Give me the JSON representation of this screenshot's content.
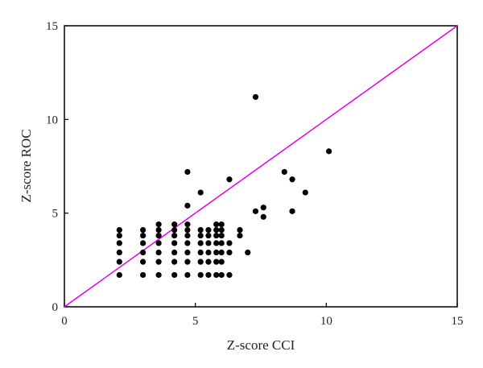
{
  "chart_data": {
    "type": "scatter",
    "title": "",
    "xlabel": "Z-score CCI",
    "ylabel": "Z-score ROC",
    "xlim": [
      0,
      15
    ],
    "ylim": [
      0,
      15
    ],
    "xticks": [
      "0",
      "5",
      "10",
      "15"
    ],
    "yticks": [
      "0",
      "5",
      "10",
      "15"
    ],
    "grid": false,
    "legend": "none",
    "marker_color": "#000000",
    "reference_line": {
      "from": [
        0,
        0
      ],
      "to": [
        15,
        15
      ],
      "color": "#e600e6"
    },
    "points": [
      [
        2.1,
        1.7
      ],
      [
        2.1,
        2.4
      ],
      [
        2.1,
        2.9
      ],
      [
        2.1,
        3.4
      ],
      [
        2.1,
        3.8
      ],
      [
        2.1,
        4.1
      ],
      [
        3.0,
        1.7
      ],
      [
        3.0,
        2.4
      ],
      [
        3.0,
        2.9
      ],
      [
        3.0,
        3.4
      ],
      [
        3.0,
        3.8
      ],
      [
        3.0,
        4.1
      ],
      [
        3.6,
        1.7
      ],
      [
        3.6,
        2.4
      ],
      [
        3.6,
        2.9
      ],
      [
        3.6,
        3.4
      ],
      [
        3.6,
        3.8
      ],
      [
        3.6,
        4.1
      ],
      [
        3.6,
        4.4
      ],
      [
        4.2,
        1.7
      ],
      [
        4.2,
        2.4
      ],
      [
        4.2,
        2.9
      ],
      [
        4.2,
        3.4
      ],
      [
        4.2,
        3.8
      ],
      [
        4.2,
        4.1
      ],
      [
        4.2,
        4.4
      ],
      [
        4.7,
        1.7
      ],
      [
        4.7,
        2.4
      ],
      [
        4.7,
        2.9
      ],
      [
        4.7,
        3.4
      ],
      [
        4.7,
        3.8
      ],
      [
        4.7,
        4.1
      ],
      [
        4.7,
        4.4
      ],
      [
        4.7,
        5.4
      ],
      [
        4.7,
        7.2
      ],
      [
        5.2,
        1.7
      ],
      [
        5.2,
        2.4
      ],
      [
        5.2,
        2.9
      ],
      [
        5.2,
        3.4
      ],
      [
        5.2,
        3.8
      ],
      [
        5.2,
        4.1
      ],
      [
        5.2,
        6.1
      ],
      [
        5.5,
        1.7
      ],
      [
        5.5,
        2.4
      ],
      [
        5.5,
        2.9
      ],
      [
        5.5,
        3.4
      ],
      [
        5.5,
        3.8
      ],
      [
        5.5,
        4.1
      ],
      [
        5.8,
        1.7
      ],
      [
        5.8,
        2.4
      ],
      [
        5.8,
        2.9
      ],
      [
        5.8,
        3.4
      ],
      [
        5.8,
        3.8
      ],
      [
        5.8,
        4.1
      ],
      [
        5.8,
        4.4
      ],
      [
        6.0,
        1.7
      ],
      [
        6.0,
        2.4
      ],
      [
        6.0,
        2.9
      ],
      [
        6.0,
        3.4
      ],
      [
        6.0,
        3.8
      ],
      [
        6.0,
        4.1
      ],
      [
        6.0,
        4.4
      ],
      [
        6.3,
        1.7
      ],
      [
        6.3,
        2.9
      ],
      [
        6.3,
        3.4
      ],
      [
        6.3,
        6.8
      ],
      [
        6.7,
        3.8
      ],
      [
        6.7,
        4.1
      ],
      [
        7.0,
        2.9
      ],
      [
        7.3,
        11.2
      ],
      [
        7.3,
        5.1
      ],
      [
        7.6,
        4.8
      ],
      [
        7.6,
        5.3
      ],
      [
        8.4,
        7.2
      ],
      [
        8.7,
        6.8
      ],
      [
        8.7,
        5.1
      ],
      [
        9.2,
        6.1
      ],
      [
        10.1,
        8.3
      ]
    ]
  }
}
